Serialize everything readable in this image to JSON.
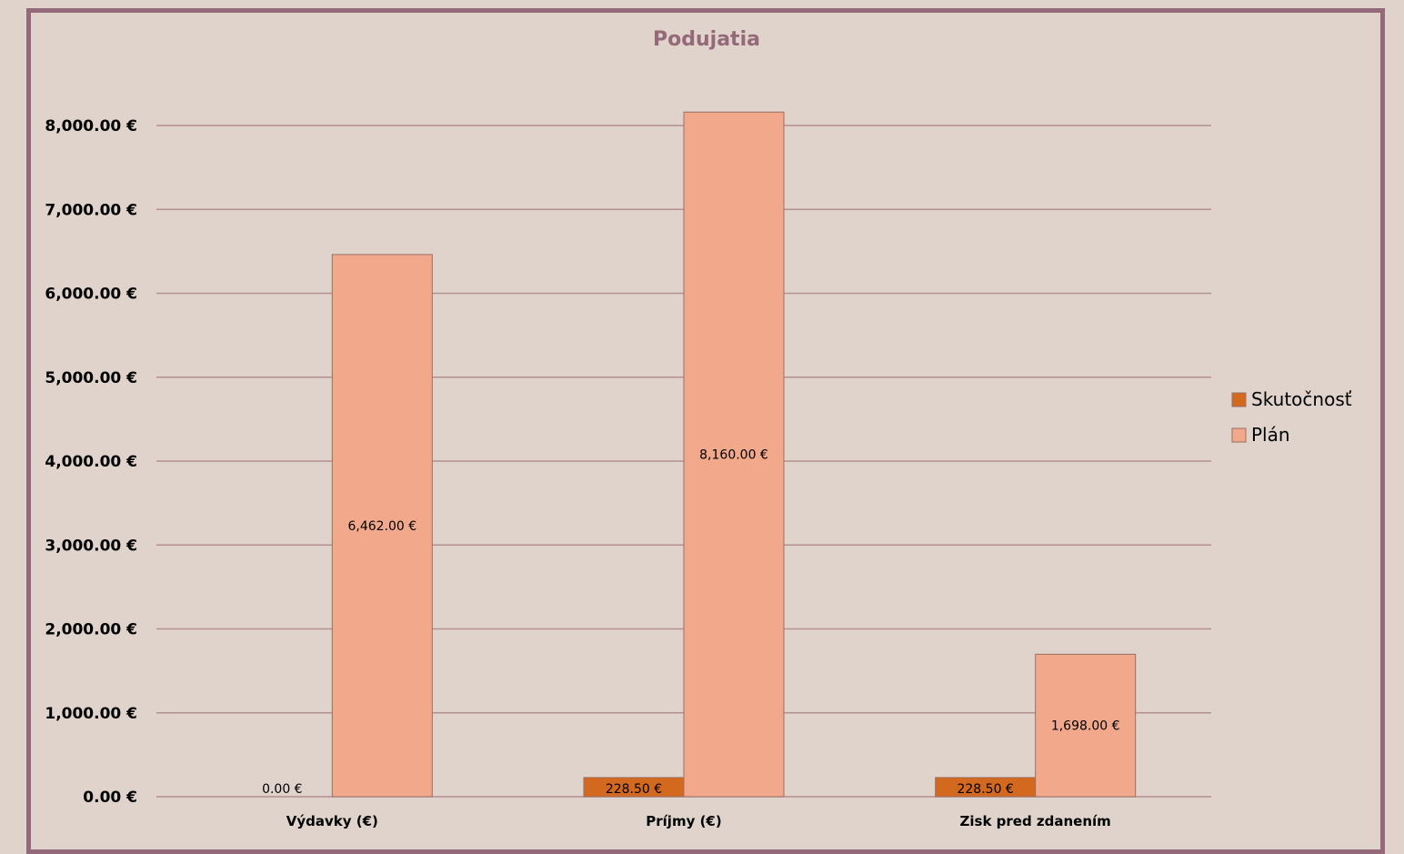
{
  "chart_data": {
    "type": "bar",
    "title": "Podujatia",
    "categories": [
      "Výdavky (€)",
      "Príjmy (€)",
      "Zisk pred zdanením"
    ],
    "series": [
      {
        "name": "Skutočnosť",
        "color": "#d2691e",
        "values": [
          0,
          228.5,
          228.5
        ],
        "labels": [
          "0.00 €",
          "228.50 €",
          "228.50 €"
        ]
      },
      {
        "name": "Plán",
        "color": "#f2a88a",
        "values": [
          6462,
          8160,
          1698
        ],
        "labels": [
          "6,462.00 €",
          "8,160.00 €",
          "1,698.00 €"
        ]
      }
    ],
    "ylim": [
      0,
      8000
    ],
    "yticks": [
      0,
      1000,
      2000,
      3000,
      4000,
      5000,
      6000,
      7000,
      8000
    ],
    "ytick_labels": [
      "0.00 €",
      "1,000.00 €",
      "2,000.00 €",
      "3,000.00 €",
      "4,000.00 €",
      "5,000.00 €",
      "6,000.00 €",
      "7,000.00 €",
      "8,000.00 €"
    ],
    "grid": true,
    "legend_position": "right",
    "xlabel": "",
    "ylabel": ""
  }
}
